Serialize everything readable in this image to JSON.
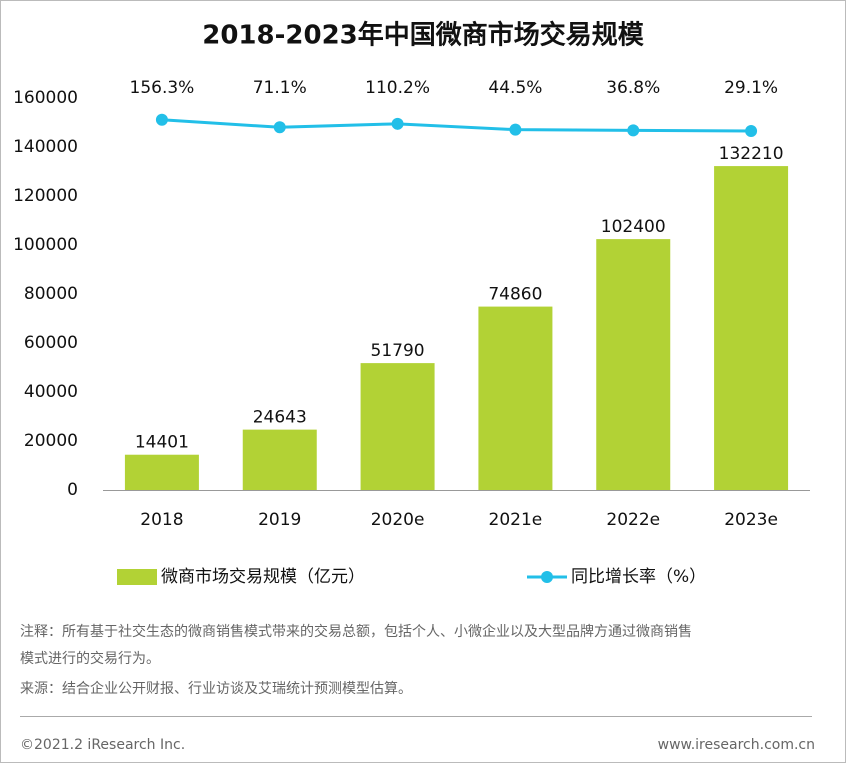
{
  "chart_data": {
    "type": "bar-line",
    "title": "2018-2023年中国微商市场交易规模",
    "categories": [
      "2018",
      "2019",
      "2020e",
      "2021e",
      "2022e",
      "2023e"
    ],
    "series": [
      {
        "name": "微商市场交易规模（亿元）",
        "type": "bar",
        "color": "#b2d235",
        "values": [
          14401,
          24643,
          51790,
          74860,
          102400,
          132210
        ]
      },
      {
        "name": "同比增长率（%）",
        "type": "line",
        "axis": "y2",
        "color": "#22bfe8",
        "values": [
          156.3,
          71.1,
          110.2,
          44.5,
          36.8,
          29.1
        ],
        "value_labels": [
          "156.3%",
          "71.1%",
          "110.2%",
          "44.5%",
          "36.8%",
          "29.1%"
        ]
      }
    ],
    "ylim": [
      0,
      160000
    ],
    "yticks": [
      0,
      20000,
      40000,
      60000,
      80000,
      100000,
      120000,
      140000,
      160000
    ],
    "y2lim": [
      -4000,
      400
    ],
    "grid": false,
    "legend": "bottom"
  },
  "notes": [
    "注释：所有基于社交生态的微商销售模式带来的交易总额，包括个人、小微企业以及大型品牌方通过微商销售",
    "模式进行的交易行为。",
    "来源：结合企业公开财报、行业访谈及艾瑞统计预测模型估算。"
  ],
  "footer": {
    "copyright": "©2021.2 iResearch Inc.",
    "website": "www.iresearch.com.cn"
  }
}
